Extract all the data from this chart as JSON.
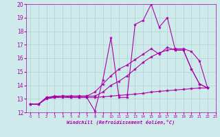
{
  "xlabel": "Windchill (Refroidissement éolien,°C)",
  "bg_color": "#ceeaea",
  "line_color": "#aa00aa",
  "xlim": [
    -0.5,
    23
  ],
  "ylim": [
    12,
    20
  ],
  "yticks": [
    12,
    13,
    14,
    15,
    16,
    17,
    18,
    19,
    20
  ],
  "xticks": [
    0,
    1,
    2,
    3,
    4,
    5,
    6,
    7,
    8,
    9,
    10,
    11,
    12,
    13,
    14,
    15,
    16,
    17,
    18,
    19,
    20,
    21,
    22,
    23
  ],
  "series": [
    {
      "x": [
        0,
        1,
        2,
        3,
        4,
        5,
        6,
        7,
        8,
        9,
        10,
        11,
        12,
        13,
        14,
        15,
        16,
        17,
        18,
        19,
        20,
        21,
        22
      ],
      "y": [
        12.6,
        12.6,
        13.1,
        13.1,
        13.2,
        13.1,
        13.1,
        13.1,
        12.1,
        14.4,
        17.5,
        13.1,
        13.1,
        18.5,
        18.8,
        20.0,
        18.3,
        19.0,
        16.6,
        16.6,
        15.2,
        14.1,
        13.8
      ]
    },
    {
      "x": [
        0,
        1,
        2,
        3,
        4,
        5,
        6,
        7,
        8,
        9,
        10,
        11,
        12,
        13,
        14,
        15,
        16,
        17,
        18,
        19,
        20,
        21,
        22
      ],
      "y": [
        12.6,
        12.6,
        13.0,
        13.1,
        13.1,
        13.1,
        13.1,
        13.1,
        13.1,
        13.15,
        13.2,
        13.25,
        13.3,
        13.35,
        13.4,
        13.5,
        13.55,
        13.6,
        13.65,
        13.7,
        13.75,
        13.8,
        13.8
      ]
    },
    {
      "x": [
        0,
        1,
        2,
        3,
        4,
        5,
        6,
        7,
        8,
        9,
        10,
        11,
        12,
        13,
        14,
        15,
        16,
        17,
        18,
        19,
        20,
        21,
        22
      ],
      "y": [
        12.6,
        12.6,
        13.1,
        13.15,
        13.2,
        13.2,
        13.2,
        13.2,
        13.2,
        13.5,
        14.0,
        14.3,
        14.7,
        15.2,
        15.7,
        16.1,
        16.4,
        16.6,
        16.7,
        16.7,
        16.5,
        15.8,
        13.8
      ]
    },
    {
      "x": [
        0,
        1,
        2,
        3,
        4,
        5,
        6,
        7,
        8,
        9,
        10,
        11,
        12,
        13,
        14,
        15,
        16,
        17,
        18,
        19,
        20,
        21,
        22
      ],
      "y": [
        12.6,
        12.6,
        13.1,
        13.2,
        13.2,
        13.2,
        13.2,
        13.2,
        13.5,
        14.1,
        14.7,
        15.2,
        15.5,
        15.9,
        16.3,
        16.7,
        16.3,
        16.8,
        16.6,
        16.6,
        15.2,
        14.1,
        13.8
      ]
    }
  ],
  "marker": "*",
  "markersize": 3,
  "linewidth": 0.8
}
